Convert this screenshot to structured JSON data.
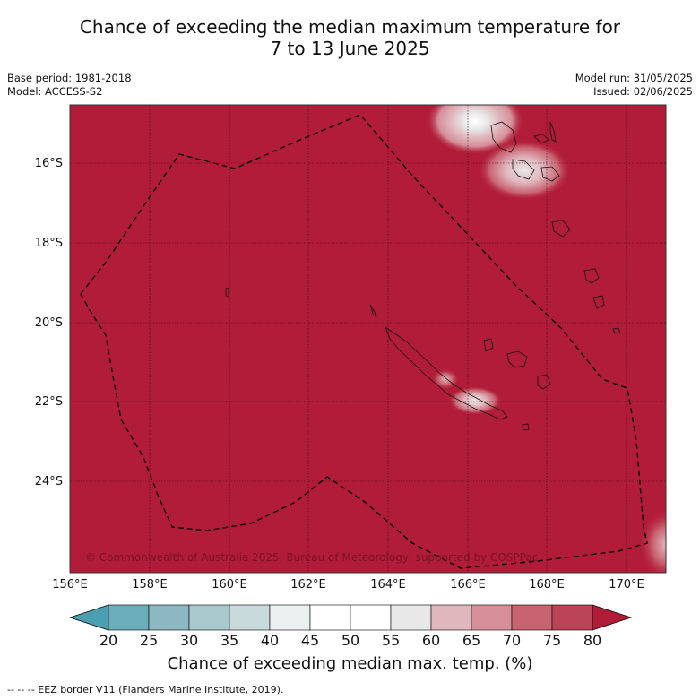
{
  "title": {
    "line1": "Chance of exceeding the median maximum temperature for",
    "line2": "7 to 13 June 2025"
  },
  "info": {
    "base_period": "Base period: 1981-2018",
    "model": "Model: ACCESS-S2",
    "model_run": "Model run: 31/05/2025",
    "issued": "Issued: 02/06/2025"
  },
  "map": {
    "background_color": "#b11c38",
    "lat_labels": [
      "16°S",
      "18°S",
      "20°S",
      "22°S",
      "24°S"
    ],
    "lon_labels": [
      "156°E",
      "158°E",
      "160°E",
      "162°E",
      "164°E",
      "166°E",
      "168°E",
      "170°E"
    ],
    "copyright": "© Commonwealth of Australia 2025, Bureau of Meteorology, supported by COSPPac"
  },
  "colorbar": {
    "ticks": [
      "20",
      "25",
      "30",
      "35",
      "40",
      "45",
      "50",
      "55",
      "60",
      "65",
      "70",
      "75",
      "80"
    ],
    "colors": [
      "#4aa0b0",
      "#6badbb",
      "#8db8c1",
      "#aac9cc",
      "#c8dadb",
      "#ebf0f1",
      "#ffffff",
      "#ffffff",
      "#e8e8e8",
      "#e0b7bd",
      "#d68e99",
      "#c96372",
      "#bb4458",
      "#b11c38"
    ],
    "label": "Chance of exceeding median max. temp. (%)"
  },
  "footer": "--  --  -- EEZ border V11 (Flanders Marine Institute, 2019)."
}
